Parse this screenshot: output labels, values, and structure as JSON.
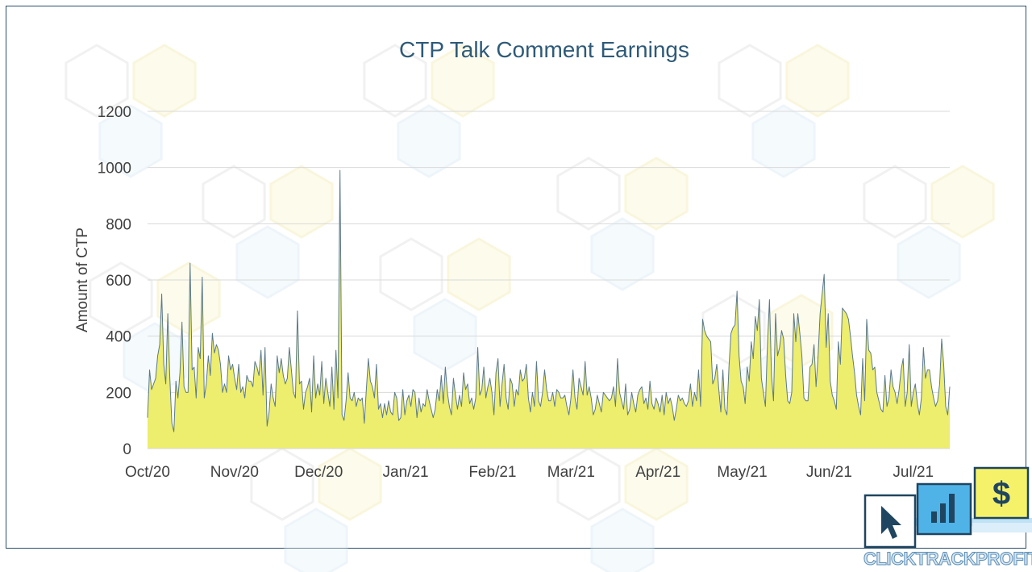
{
  "chart_data": {
    "type": "area",
    "title": "CTP Talk Comment Earnings",
    "xlabel": "",
    "ylabel": "Amount of CTP",
    "ylim": [
      0,
      1200
    ],
    "yticks": [
      0,
      200,
      400,
      600,
      800,
      1000,
      1200
    ],
    "xticks": [
      "Oct/20",
      "Nov/20",
      "Dec/20",
      "Jan/21",
      "Feb/21",
      "Mar/21",
      "Apr/21",
      "May/21",
      "Jun/21",
      "Jul/21"
    ],
    "grid": true,
    "fill_color": "#eded6e",
    "line_color": "#5b7a8a",
    "start_date": "2020-10-01",
    "end_date": "2021-07-14",
    "values": [
      110,
      280,
      210,
      230,
      250,
      330,
      370,
      550,
      300,
      230,
      480,
      250,
      90,
      60,
      240,
      180,
      270,
      450,
      220,
      200,
      200,
      660,
      280,
      290,
      180,
      360,
      320,
      610,
      180,
      230,
      330,
      260,
      410,
      340,
      370,
      350,
      300,
      200,
      230,
      200,
      330,
      280,
      300,
      250,
      210,
      300,
      200,
      220,
      180,
      260,
      240,
      240,
      220,
      310,
      290,
      260,
      350,
      190,
      360,
      80,
      130,
      230,
      180,
      150,
      330,
      270,
      320,
      260,
      230,
      250,
      360,
      280,
      200,
      180,
      490,
      230,
      240,
      140,
      200,
      220,
      250,
      130,
      330,
      180,
      230,
      190,
      310,
      160,
      250,
      200,
      150,
      290,
      140,
      350,
      180,
      990,
      120,
      100,
      170,
      270,
      180,
      170,
      200,
      150,
      180,
      170,
      180,
      90,
      210,
      320,
      240,
      220,
      180,
      300,
      140,
      160,
      110,
      160,
      120,
      170,
      130,
      120,
      200,
      180,
      100,
      110,
      210,
      120,
      170,
      190,
      150,
      210,
      200,
      110,
      180,
      130,
      160,
      150,
      210,
      170,
      140,
      110,
      140,
      210,
      170,
      260,
      160,
      290,
      200,
      150,
      120,
      250,
      190,
      140,
      190,
      150,
      270,
      210,
      230,
      160,
      180,
      140,
      180,
      360,
      190,
      210,
      290,
      180,
      220,
      250,
      200,
      120,
      270,
      320,
      150,
      230,
      300,
      180,
      140,
      250,
      230,
      150,
      210,
      190,
      280,
      240,
      250,
      300,
      180,
      130,
      200,
      150,
      310,
      170,
      150,
      200,
      280,
      210,
      170,
      170,
      200,
      150,
      210,
      200,
      180,
      180,
      190,
      150,
      120,
      180,
      280,
      180,
      140,
      250,
      220,
      190,
      310,
      190,
      220,
      180,
      120,
      140,
      190,
      160,
      130,
      200,
      190,
      180,
      170,
      180,
      220,
      150,
      320,
      200,
      170,
      140,
      230,
      120,
      140,
      200,
      160,
      130,
      190,
      210,
      220,
      160,
      180,
      140,
      240,
      160,
      140,
      180,
      160,
      130,
      190,
      120,
      200,
      160,
      180,
      150,
      100,
      140,
      190,
      170,
      180,
      160,
      150,
      170,
      230,
      150,
      200,
      170,
      280,
      150,
      460,
      420,
      400,
      390,
      380,
      230,
      250,
      300,
      210,
      130,
      280,
      140,
      120,
      290,
      410,
      430,
      440,
      560,
      330,
      240,
      220,
      160,
      290,
      240,
      380,
      320,
      470,
      420,
      530,
      250,
      200,
      150,
      370,
      530,
      260,
      170,
      480,
      330,
      360,
      420,
      390,
      260,
      170,
      160,
      200,
      480,
      380,
      480,
      410,
      330,
      180,
      170,
      170,
      290,
      300,
      370,
      220,
      330,
      480,
      550,
      620,
      360,
      480,
      240,
      190,
      170,
      140,
      380,
      300,
      500,
      490,
      480,
      460,
      400,
      330,
      270,
      190,
      150,
      120,
      320,
      170,
      460,
      350,
      340,
      280,
      290,
      200,
      170,
      140,
      130,
      260,
      150,
      180,
      280,
      220,
      200,
      160,
      210,
      280,
      320,
      150,
      200,
      370,
      150,
      200,
      230,
      160,
      120,
      180,
      360,
      250,
      280,
      280,
      220,
      180,
      150,
      170,
      230,
      390,
      300,
      150,
      120,
      220
    ]
  },
  "logo": {
    "text": "CLICKTRACKPROFIT",
    "icons": [
      "cursor-arrow-icon",
      "bar-chart-icon",
      "dollar-icon"
    ],
    "dollar_glyph": "$",
    "colors": {
      "cursor_box": "#ffffff",
      "chart_box": "#4fb3e8",
      "dollar_box": "#f5f26a",
      "border": "#1f4560"
    }
  }
}
